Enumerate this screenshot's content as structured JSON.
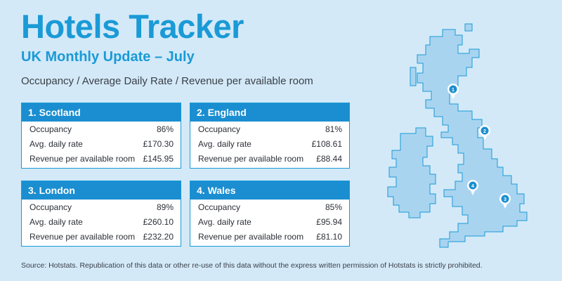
{
  "header": {
    "title": "Hotels Tracker",
    "subtitle": "UK Monthly Update – July",
    "metrics_line": "Occupancy / Average Daily Rate / Revenue per available room"
  },
  "regions": [
    {
      "name": "1. Scotland",
      "rows": [
        {
          "label": "Occupancy",
          "value": "86%"
        },
        {
          "label": "Avg. daily rate",
          "value": "£170.30"
        },
        {
          "label": "Revenue per available room",
          "value": "£145.95"
        }
      ]
    },
    {
      "name": "2. England",
      "rows": [
        {
          "label": "Occupancy",
          "value": "81%"
        },
        {
          "label": "Avg. daily rate",
          "value": "£108.61"
        },
        {
          "label": "Revenue per available room",
          "value": "£88.44"
        }
      ]
    },
    {
      "name": "3. London",
      "rows": [
        {
          "label": "Occupancy",
          "value": "89%"
        },
        {
          "label": "Avg. daily rate",
          "value": "£260.10"
        },
        {
          "label": "Revenue per available room",
          "value": "£232.20"
        }
      ]
    },
    {
      "name": "4. Wales",
      "rows": [
        {
          "label": "Occupancy",
          "value": "85%"
        },
        {
          "label": "Avg. daily rate",
          "value": "£95.94"
        },
        {
          "label": "Revenue per available room",
          "value": "£81.10"
        }
      ]
    }
  ],
  "map": {
    "pins": [
      "1",
      "2",
      "3",
      "4"
    ]
  },
  "footer": {
    "source": "Source: Hotstats. Republication of this data or other re-use of this data without the express written permission of Hotstats is strictly prohibited."
  },
  "colors": {
    "background": "#d3e9f8",
    "accent": "#1a9ad6",
    "card_header": "#1a8ed0",
    "map_fill": "#a9d4f0",
    "map_stroke": "#1a9ad6"
  }
}
